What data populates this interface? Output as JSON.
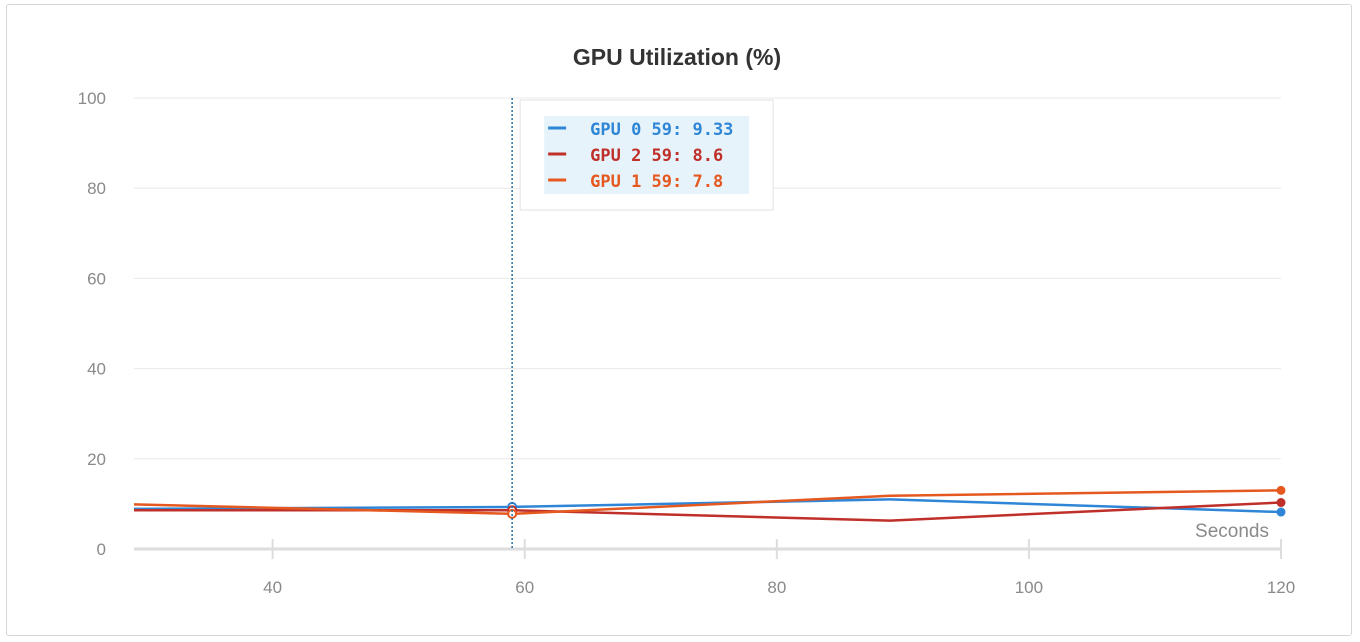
{
  "colors": {
    "gpu0": "#2f86d6",
    "gpu1": "#e5581f",
    "gpu2": "#c0302a",
    "grid": "#e8e8e8",
    "axis": "#dddddd",
    "cursor": "#2a6f9e"
  },
  "chart_data": {
    "type": "line",
    "title": "GPU Utilization (%)",
    "xlabel": "Seconds",
    "ylabel": "",
    "xlim": [
      29,
      120
    ],
    "ylim": [
      0,
      100
    ],
    "xticks": [
      40,
      60,
      80,
      100,
      120
    ],
    "yticks": [
      0,
      20,
      40,
      60,
      80,
      100
    ],
    "grid": true,
    "hover_x": 59,
    "series": [
      {
        "name": "GPU 0",
        "color_key": "gpu0",
        "x": [
          29,
          59,
          89,
          120
        ],
        "y": [
          8.9,
          9.33,
          11.0,
          8.2
        ]
      },
      {
        "name": "GPU 2",
        "color_key": "gpu2",
        "x": [
          29,
          59,
          89,
          120
        ],
        "y": [
          8.6,
          8.6,
          6.3,
          10.3
        ]
      },
      {
        "name": "GPU 1",
        "color_key": "gpu1",
        "x": [
          29,
          59,
          89,
          120
        ],
        "y": [
          9.9,
          7.8,
          11.8,
          13.0
        ]
      }
    ],
    "tooltip": [
      {
        "label": "GPU 0 59: 9.33",
        "color_key": "gpu0"
      },
      {
        "label": "GPU 2 59: 8.6",
        "color_key": "gpu2"
      },
      {
        "label": "GPU 1 59: 7.8",
        "color_key": "gpu1"
      }
    ]
  }
}
